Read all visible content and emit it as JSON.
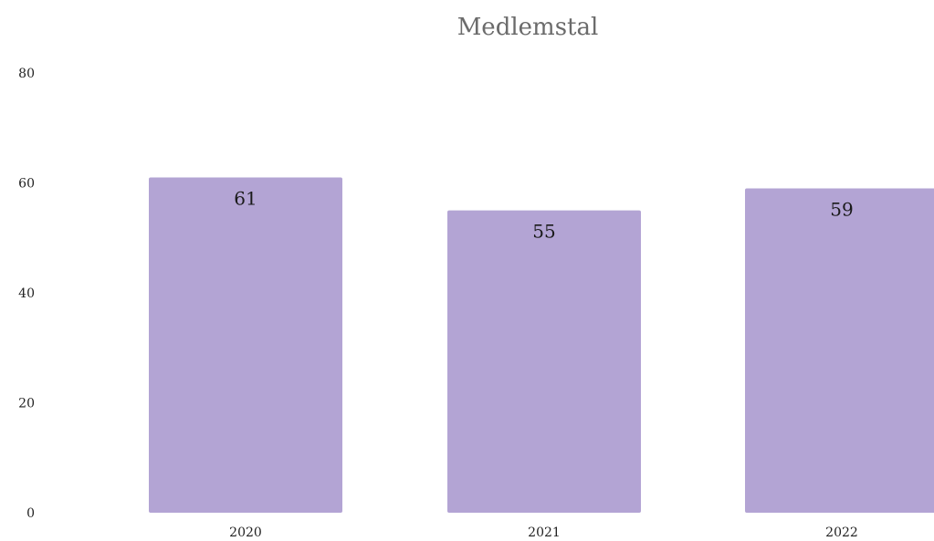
{
  "chart_data": {
    "type": "bar",
    "title": "Medlemstal",
    "xlabel": "",
    "ylabel": "",
    "categories": [
      "2020",
      "2021",
      "2022"
    ],
    "values": [
      61,
      55,
      59
    ],
    "ylim": [
      0,
      80
    ],
    "yticks": [
      0,
      20,
      40,
      60,
      80
    ],
    "bar_color": "#b3a4d4",
    "grid": false,
    "legend": "none"
  }
}
